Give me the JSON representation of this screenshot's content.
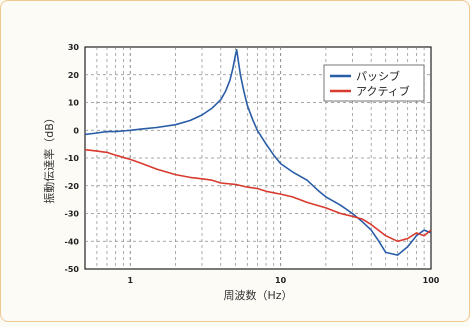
{
  "chart_data": {
    "type": "line",
    "title": "",
    "xlabel": "周波数（Hz）",
    "ylabel": "振動伝達率（dB）",
    "x_scale": "log",
    "xlim": [
      0.5,
      100
    ],
    "ylim": [
      -50,
      30
    ],
    "grid": true,
    "legend_position": "top-right",
    "y_ticks": [
      "30",
      "20",
      "10",
      "0",
      "-10",
      "-20",
      "-30",
      "-40",
      "-50"
    ],
    "x_ticks": [
      {
        "value": 1,
        "label": "1"
      },
      {
        "value": 10,
        "label": "10"
      },
      {
        "value": 100,
        "label": "100"
      }
    ],
    "series": [
      {
        "name": "パッシブ",
        "color": "#2a5da8",
        "x": [
          0.5,
          0.6,
          0.7,
          0.8,
          1.0,
          1.2,
          1.5,
          2.0,
          2.5,
          3.0,
          3.5,
          4.0,
          4.3,
          4.6,
          4.8,
          5.0,
          5.1,
          5.2,
          5.4,
          5.7,
          6.0,
          6.5,
          7.0,
          8.0,
          9.0,
          10,
          12,
          15,
          18,
          20,
          25,
          30,
          35,
          40,
          45,
          50,
          60,
          70,
          80,
          90,
          100
        ],
        "y": [
          -1.5,
          -1,
          -0.5,
          -0.5,
          0,
          0.5,
          1,
          2,
          3.5,
          5.5,
          8,
          11,
          14,
          18,
          22,
          27,
          29,
          26,
          20,
          14,
          9,
          4,
          0,
          -5,
          -9,
          -12,
          -15,
          -18,
          -22,
          -24,
          -27,
          -30,
          -33,
          -36,
          -40,
          -44,
          -45,
          -42,
          -38,
          -36,
          -37
        ]
      },
      {
        "name": "アクティブ",
        "color": "#d83b2e",
        "x": [
          0.5,
          0.6,
          0.7,
          0.8,
          1.0,
          1.2,
          1.5,
          2.0,
          2.5,
          3.0,
          3.5,
          4.0,
          5.0,
          6.0,
          7.0,
          8.0,
          10,
          12,
          15,
          20,
          25,
          30,
          35,
          40,
          50,
          60,
          70,
          80,
          90,
          100
        ],
        "y": [
          -7,
          -7.5,
          -8,
          -9,
          -10.5,
          -12,
          -14,
          -16,
          -17,
          -17.5,
          -18,
          -19,
          -19.5,
          -20.5,
          -21,
          -22,
          -23,
          -24,
          -26,
          -28,
          -30,
          -31,
          -32,
          -34,
          -38,
          -40,
          -39,
          -37,
          -38,
          -36
        ]
      }
    ]
  }
}
